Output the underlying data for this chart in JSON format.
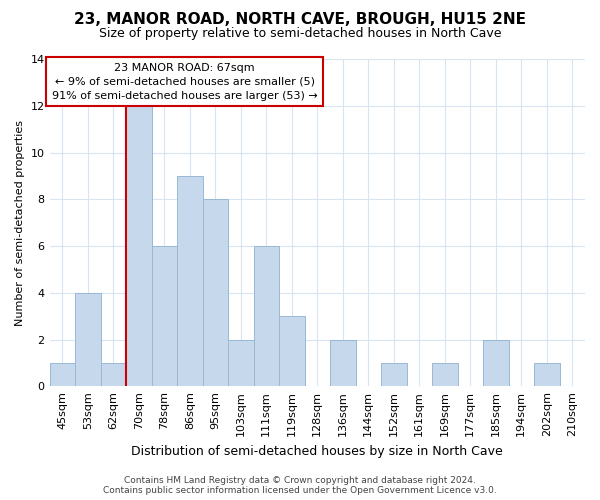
{
  "title": "23, MANOR ROAD, NORTH CAVE, BROUGH, HU15 2NE",
  "subtitle": "Size of property relative to semi-detached houses in North Cave",
  "xlabel": "Distribution of semi-detached houses by size in North Cave",
  "ylabel": "Number of semi-detached properties",
  "bin_labels": [
    "45sqm",
    "53sqm",
    "62sqm",
    "70sqm",
    "78sqm",
    "86sqm",
    "95sqm",
    "103sqm",
    "111sqm",
    "119sqm",
    "128sqm",
    "136sqm",
    "144sqm",
    "152sqm",
    "161sqm",
    "169sqm",
    "177sqm",
    "185sqm",
    "194sqm",
    "202sqm",
    "210sqm"
  ],
  "bar_values": [
    1,
    4,
    1,
    12,
    6,
    9,
    8,
    2,
    6,
    3,
    0,
    2,
    0,
    1,
    0,
    1,
    0,
    2,
    0,
    1,
    0
  ],
  "bar_color": "#c6d9ec",
  "bar_edge_color": "#9ab8d4",
  "vline_x": 2.5,
  "vline_color": "#cc0000",
  "annotation_line1": "23 MANOR ROAD: 67sqm",
  "annotation_line2": "← 9% of semi-detached houses are smaller (5)",
  "annotation_line3": "91% of semi-detached houses are larger (53) →",
  "annotation_box_color": "#ffffff",
  "annotation_box_edge": "#cc0000",
  "ylim": [
    0,
    14
  ],
  "yticks": [
    0,
    2,
    4,
    6,
    8,
    10,
    12,
    14
  ],
  "footer_line1": "Contains HM Land Registry data © Crown copyright and database right 2024.",
  "footer_line2": "Contains public sector information licensed under the Open Government Licence v3.0.",
  "bg_color": "#ffffff",
  "grid_color": "#d8e4f0",
  "title_fontsize": 11,
  "subtitle_fontsize": 9,
  "xlabel_fontsize": 9,
  "ylabel_fontsize": 8,
  "tick_fontsize": 8,
  "annotation_fontsize": 8,
  "footer_fontsize": 6.5
}
